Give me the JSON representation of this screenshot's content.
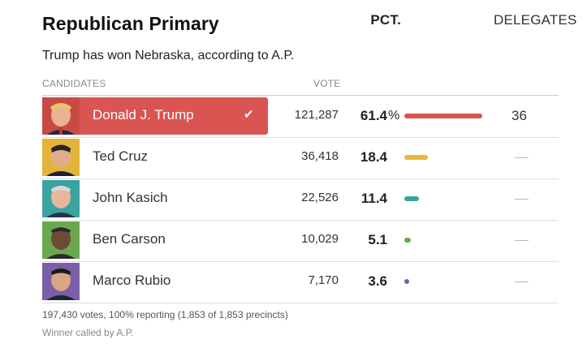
{
  "title": "Republican Primary",
  "subtitle": "Trump has won Nebraska, according to A.P.",
  "headers": {
    "candidates": "CANDIDATES",
    "vote": "VOTE",
    "pct": "PCT.",
    "delegates": "DELEGATES"
  },
  "colors": {
    "winner_bg": "#da5551",
    "trump": "#d9534f",
    "cruz": "#e8b93c",
    "kasich": "#3aa3a0",
    "carson": "#6aa84f",
    "rubio": "#7b5ea7"
  },
  "rows": [
    {
      "name": "Donald J. Trump",
      "votes": "121,287",
      "pct": "61.4",
      "pct_sign": "%",
      "share": 0.614,
      "delegates": "36",
      "winner": true,
      "check": "✔"
    },
    {
      "name": "Ted Cruz",
      "votes": "36,418",
      "pct": "18.4",
      "share": 0.184,
      "delegates": "—"
    },
    {
      "name": "John Kasich",
      "votes": "22,526",
      "pct": "11.4",
      "share": 0.114,
      "delegates": "—"
    },
    {
      "name": "Ben Carson",
      "votes": "10,029",
      "pct": "5.1",
      "share": 0.051,
      "delegates": "—"
    },
    {
      "name": "Marco Rubio",
      "votes": "7,170",
      "pct": "3.6",
      "share": 0.036,
      "delegates": "—"
    }
  ],
  "footer": {
    "reporting": "197,430 votes, 100% reporting (1,853 of 1,853 precincts)",
    "called": "Winner called by A.P."
  }
}
